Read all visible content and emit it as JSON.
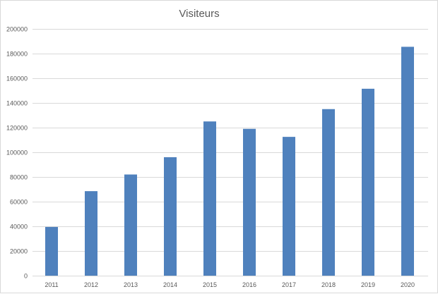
{
  "chart_data": {
    "type": "bar",
    "title": "Visiteurs",
    "xlabel": "",
    "ylabel": "",
    "categories": [
      "2011",
      "2012",
      "2013",
      "2014",
      "2015",
      "2016",
      "2017",
      "2018",
      "2019",
      "2020"
    ],
    "values": [
      39500,
      68500,
      82000,
      96000,
      125000,
      119000,
      112500,
      135000,
      151500,
      185500
    ],
    "ylim": [
      0,
      200000
    ],
    "yticks": [
      "0",
      "20000",
      "40000",
      "60000",
      "80000",
      "100000",
      "120000",
      "140000",
      "160000",
      "180000",
      "200000"
    ],
    "grid": true,
    "legend": "none",
    "colors": {
      "bar": "#4f81bd",
      "grid": "#d9d9d9",
      "text": "#595959"
    }
  }
}
